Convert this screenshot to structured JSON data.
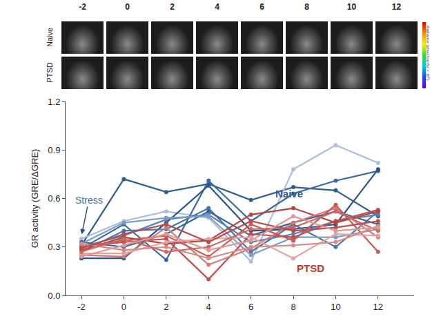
{
  "chart_data": {
    "type": "line",
    "y_label": "GR activity (GRE/ΔGRE)",
    "xlim": [
      -2.75,
      13.7
    ],
    "xticks": [
      -2,
      0,
      2,
      4,
      6,
      8,
      10,
      12
    ],
    "ylim": [
      0,
      1.2
    ],
    "yticks": [
      {
        "value": 0,
        "label": "0.0"
      },
      0.3,
      0.6,
      0.9,
      1.2
    ],
    "grid": false,
    "marker": "circle",
    "x": [
      -2,
      0,
      2,
      4,
      6,
      8,
      10,
      12
    ],
    "series": [
      {
        "name": "Naive",
        "color": "#2f5d8f",
        "values": [
          0.31,
          0.72,
          0.64,
          0.69,
          0.59,
          0.67,
          0.65,
          0.49
        ]
      },
      {
        "name": "Naive",
        "color": "#a8bedc",
        "values": [
          0.35,
          0.46,
          0.52,
          0.48,
          0.21,
          0.78,
          0.93,
          0.82
        ]
      },
      {
        "name": "Naive",
        "color": "#3c6aa0",
        "values": [
          0.29,
          0.44,
          0.22,
          0.71,
          0.46,
          0.63,
          0.71,
          0.77
        ]
      },
      {
        "name": "Naive",
        "color": "#2a548a",
        "values": [
          0.23,
          0.23,
          0.45,
          0.68,
          0.4,
          0.41,
          0.44,
          0.78
        ]
      },
      {
        "name": "Naive",
        "color": "#4676ab",
        "values": [
          0.27,
          0.4,
          0.41,
          0.54,
          0.27,
          0.44,
          0.3,
          0.52
        ]
      },
      {
        "name": "Naive",
        "color": "#34639a",
        "values": [
          0.33,
          0.3,
          0.38,
          0.52,
          0.37,
          0.45,
          0.52,
          0.44
        ]
      },
      {
        "name": "Naive",
        "color": "#5582b5",
        "values": [
          0.3,
          0.37,
          0.47,
          0.5,
          0.33,
          0.38,
          0.46,
          0.5
        ]
      },
      {
        "name": "Naive",
        "color": "#7d9cc6",
        "values": [
          0.32,
          0.45,
          0.48,
          0.49,
          0.25,
          0.36,
          0.36,
          0.41
        ]
      },
      {
        "name": "PTSD",
        "color": "#c0504d",
        "values": [
          0.3,
          0.33,
          0.35,
          0.1,
          0.38,
          0.36,
          0.46,
          0.53
        ]
      },
      {
        "name": "PTSD",
        "color": "#b8443f",
        "values": [
          0.28,
          0.36,
          0.32,
          0.34,
          0.5,
          0.54,
          0.45,
          0.52
        ]
      },
      {
        "name": "PTSD",
        "color": "#d37a76",
        "values": [
          0.25,
          0.24,
          0.42,
          0.19,
          0.29,
          0.45,
          0.54,
          0.36
        ]
      },
      {
        "name": "PTSD",
        "color": "#c65a56",
        "values": [
          0.3,
          0.34,
          0.37,
          0.24,
          0.44,
          0.34,
          0.56,
          0.27
        ]
      },
      {
        "name": "PTSD",
        "color": "#e2a5a1",
        "values": [
          0.26,
          0.26,
          0.33,
          0.35,
          0.36,
          0.23,
          0.38,
          0.37
        ]
      },
      {
        "name": "PTSD",
        "color": "#d98b87",
        "values": [
          0.32,
          0.28,
          0.3,
          0.23,
          0.3,
          0.31,
          0.33,
          0.43
        ]
      },
      {
        "name": "PTSD",
        "color": "#cc6864",
        "values": [
          0.27,
          0.35,
          0.27,
          0.3,
          0.41,
          0.42,
          0.52,
          0.4
        ]
      },
      {
        "name": "PTSD",
        "color": "#b5504c",
        "values": [
          0.29,
          0.38,
          0.44,
          0.33,
          0.46,
          0.4,
          0.42,
          0.46
        ]
      },
      {
        "name": "PTSD",
        "color": "#de9995",
        "values": [
          0.24,
          0.31,
          0.38,
          0.28,
          0.34,
          0.49,
          0.4,
          0.42
        ]
      }
    ],
    "annotations": [
      {
        "text": "Naive",
        "x": 7.8,
        "y": 0.63,
        "color": "#2f5d8f"
      },
      {
        "text": "PTSD",
        "x": 8.8,
        "y": 0.17,
        "color": "#c0392b"
      },
      {
        "text": "Stress",
        "x": -2,
        "y": 0.37,
        "text_x": -1.65,
        "text_y": 0.59,
        "color": "#4a6f9a"
      }
    ],
    "image_strip": {
      "columns": [
        "-2",
        "0",
        "2",
        "4",
        "6",
        "8",
        "10",
        "12"
      ],
      "rows": [
        "Naive",
        "PTSD"
      ],
      "colorbar_label": "Radiance (p/sec/cm²/sr × 10⁶)"
    }
  }
}
